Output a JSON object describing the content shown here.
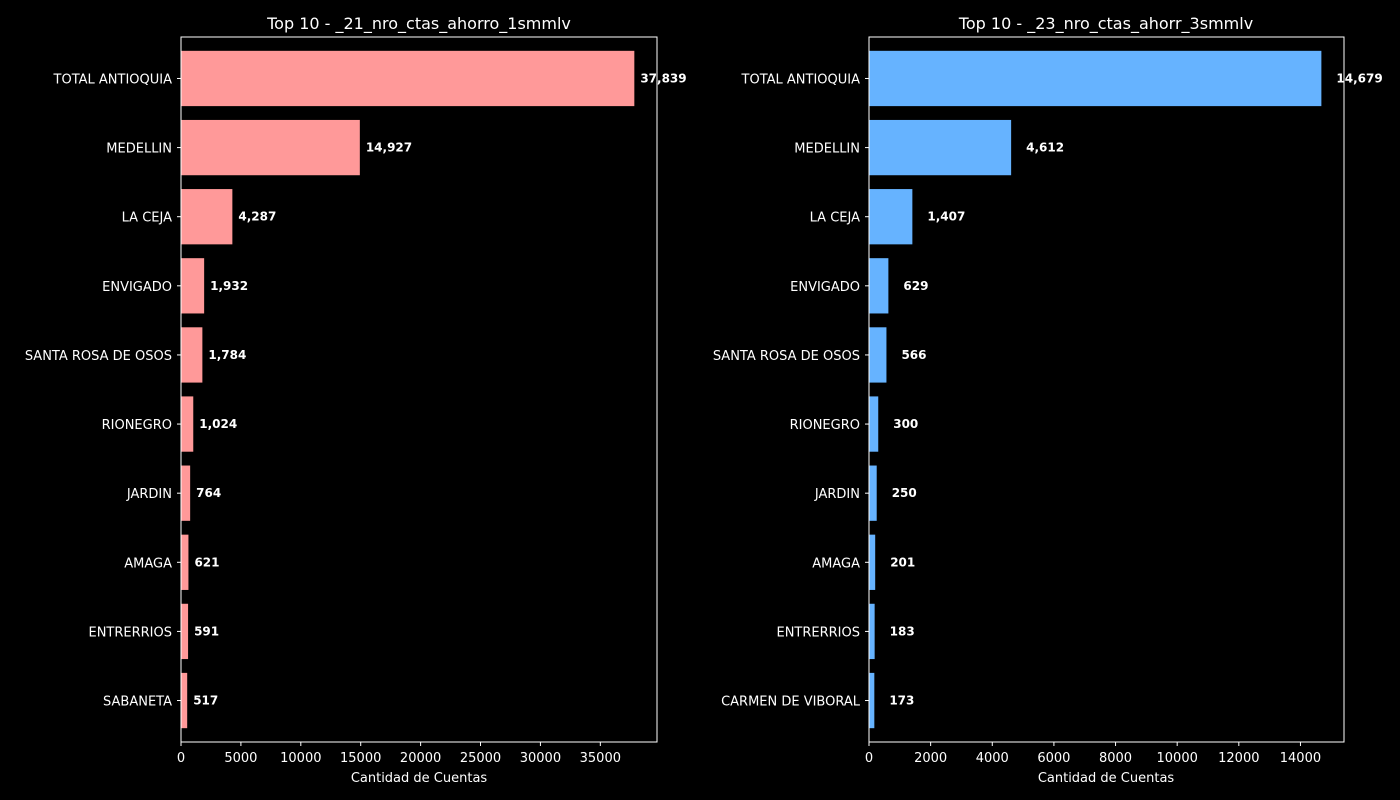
{
  "chart_data": [
    {
      "type": "bar",
      "orientation": "horizontal",
      "title": "Top 10 - _21_nro_ctas_ahorro_1smmlv",
      "xlabel": "Cantidad de Cuentas",
      "ylabel": "",
      "xlim": [
        0,
        39731
      ],
      "xticks": [
        0,
        5000,
        10000,
        15000,
        20000,
        25000,
        30000,
        35000
      ],
      "xtick_labels": [
        "0",
        "5000",
        "10000",
        "15000",
        "20000",
        "25000",
        "30000",
        "35000"
      ],
      "categories": [
        "TOTAL ANTIOQUIA",
        "MEDELLIN",
        "LA CEJA",
        "ENVIGADO",
        "SANTA ROSA DE OSOS",
        "RIONEGRO",
        "JARDIN",
        "AMAGA",
        "ENTRERRIOS",
        "SABANETA"
      ],
      "values": [
        37839,
        14927,
        4287,
        1932,
        1784,
        1024,
        764,
        621,
        591,
        517
      ],
      "value_labels": [
        "37,839",
        "14,927",
        "4,287",
        "1,932",
        "1,784",
        "1,024",
        "764",
        "621",
        "591",
        "517"
      ],
      "color": "#ff9999",
      "grid": false,
      "legend": "none"
    },
    {
      "type": "bar",
      "orientation": "horizontal",
      "title": "Top 10 - _23_nro_ctas_ahorr_3smmlv",
      "xlabel": "Cantidad de Cuentas",
      "ylabel": "",
      "xlim": [
        0,
        15413
      ],
      "xticks": [
        0,
        2000,
        4000,
        6000,
        8000,
        10000,
        12000,
        14000
      ],
      "xtick_labels": [
        "0",
        "2000",
        "4000",
        "6000",
        "8000",
        "10000",
        "12000",
        "14000"
      ],
      "categories": [
        "TOTAL ANTIOQUIA",
        "MEDELLIN",
        "LA CEJA",
        "ENVIGADO",
        "SANTA ROSA DE OSOS",
        "RIONEGRO",
        "JARDIN",
        "AMAGA",
        "ENTRERRIOS",
        "CARMEN DE VIBORAL"
      ],
      "values": [
        14679,
        4612,
        1407,
        629,
        566,
        300,
        250,
        201,
        183,
        173
      ],
      "value_labels": [
        "14,679",
        "4,612",
        "1,407",
        "629",
        "566",
        "300",
        "250",
        "201",
        "183",
        "173"
      ],
      "color": "#66b3ff",
      "grid": false,
      "legend": "none"
    }
  ]
}
